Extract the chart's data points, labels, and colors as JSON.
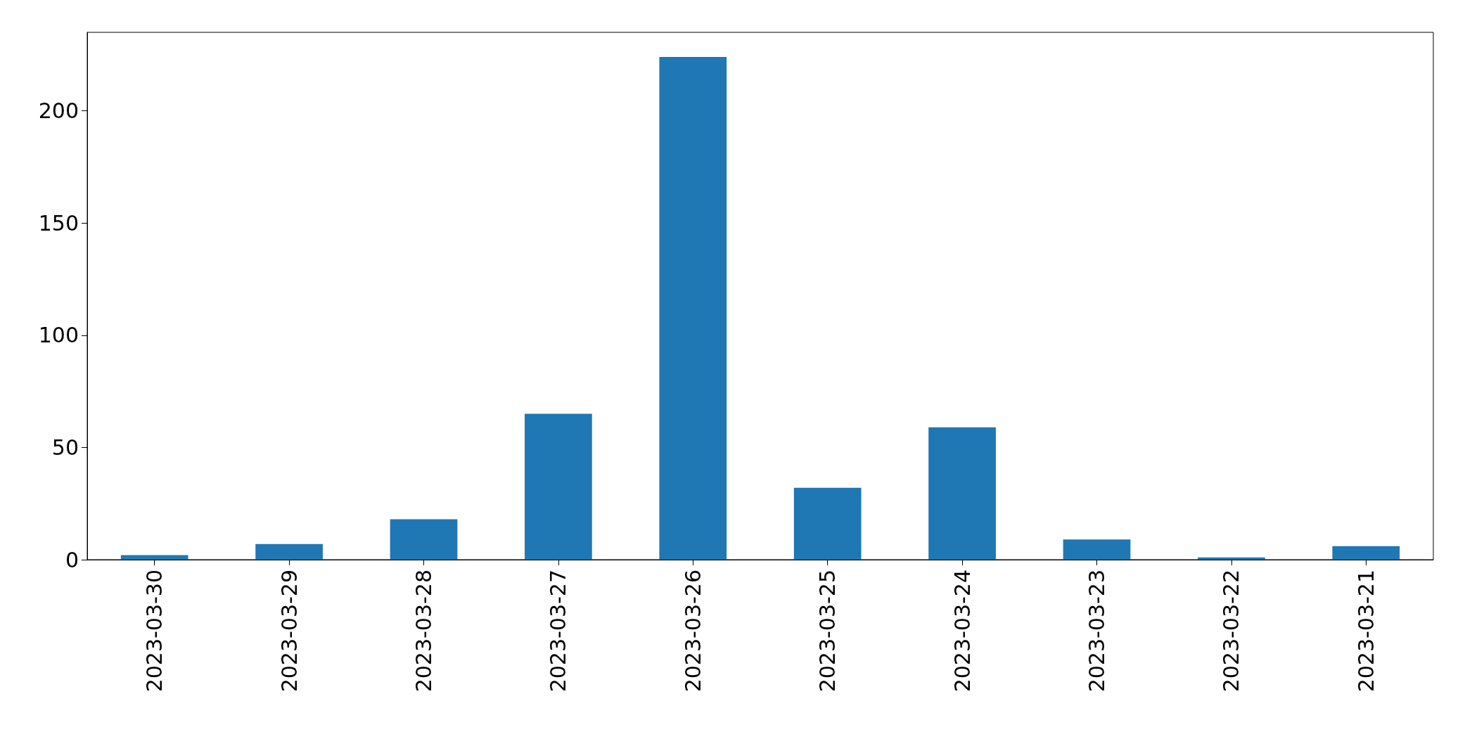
{
  "chart_data": {
    "type": "bar",
    "categories": [
      "2023-03-30",
      "2023-03-29",
      "2023-03-28",
      "2023-03-27",
      "2023-03-26",
      "2023-03-25",
      "2023-03-24",
      "2023-03-23",
      "2023-03-22",
      "2023-03-21"
    ],
    "values": [
      2,
      7,
      18,
      65,
      224,
      32,
      59,
      9,
      1,
      6
    ],
    "color": "#1f77b4",
    "ylim": [
      0,
      235
    ],
    "yticks": [
      0,
      50,
      100,
      150,
      200
    ]
  }
}
